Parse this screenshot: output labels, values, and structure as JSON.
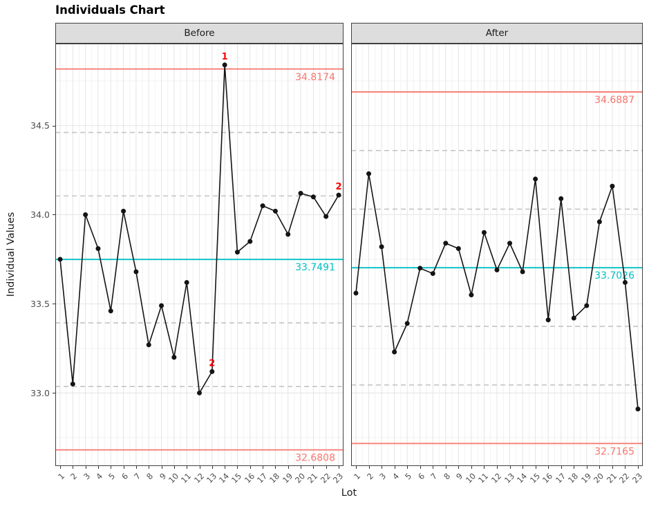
{
  "title": "Individuals Chart",
  "xlabel": "Lot",
  "ylabel": "Individual Values",
  "colors": {
    "limit_line": "#F8766D",
    "center_line": "#00BFC4",
    "flag_text": "#FF0000",
    "data": "#141414",
    "grid_major": "#E4E4E4",
    "grid_minor": "#F2F2F2",
    "zone_dash": "#C4C4C4",
    "strip_bg": "#DDDDDD",
    "border": "#404040",
    "axis_text": "#4D4D4D"
  },
  "y_axis": {
    "min": 32.59,
    "max": 34.96,
    "ticks": [
      33.0,
      33.5,
      34.0,
      34.5
    ],
    "tick_labels": [
      "33.0",
      "33.5",
      "34.0",
      "34.5"
    ],
    "minor": [
      32.75,
      33.25,
      33.75,
      34.25,
      34.75
    ]
  },
  "x_axis": {
    "ticks": [
      1,
      2,
      3,
      4,
      5,
      6,
      7,
      8,
      9,
      10,
      11,
      12,
      13,
      14,
      15,
      16,
      17,
      18,
      19,
      20,
      21,
      22,
      23
    ]
  },
  "chart_data": [
    {
      "type": "line",
      "panel": "Before",
      "x": [
        1,
        2,
        3,
        4,
        5,
        6,
        7,
        8,
        9,
        10,
        11,
        12,
        13,
        14,
        15,
        16,
        17,
        18,
        19,
        20,
        21,
        22,
        23
      ],
      "values": [
        33.75,
        33.05,
        34.0,
        33.81,
        33.46,
        34.02,
        33.68,
        33.27,
        33.49,
        33.2,
        33.62,
        33.0,
        33.12,
        34.84,
        33.79,
        33.85,
        34.05,
        34.02,
        33.89,
        34.12,
        34.1,
        33.99,
        34.11
      ],
      "ucl": 34.8174,
      "center": 33.7491,
      "lcl": 32.6808,
      "ucl_label": "34.8174",
      "center_label": "33.7491",
      "lcl_label": "32.6808",
      "flags": [
        {
          "x": 13,
          "label": "2"
        },
        {
          "x": 14,
          "label": "1"
        },
        {
          "x": 23,
          "label": "2"
        }
      ]
    },
    {
      "type": "line",
      "panel": "After",
      "x": [
        1,
        2,
        3,
        4,
        5,
        6,
        7,
        8,
        9,
        10,
        11,
        12,
        13,
        14,
        15,
        16,
        17,
        18,
        19,
        20,
        21,
        22,
        23
      ],
      "values": [
        33.56,
        34.23,
        33.82,
        33.23,
        33.39,
        33.7,
        33.67,
        33.84,
        33.81,
        33.55,
        33.9,
        33.69,
        33.84,
        33.68,
        34.2,
        33.41,
        34.09,
        33.42,
        33.49,
        33.96,
        34.16,
        33.62,
        32.91
      ],
      "ucl": 34.6887,
      "center": 33.7026,
      "lcl": 32.7165,
      "ucl_label": "34.6887",
      "center_label": "33.7026",
      "lcl_label": "32.7165",
      "flags": []
    }
  ]
}
